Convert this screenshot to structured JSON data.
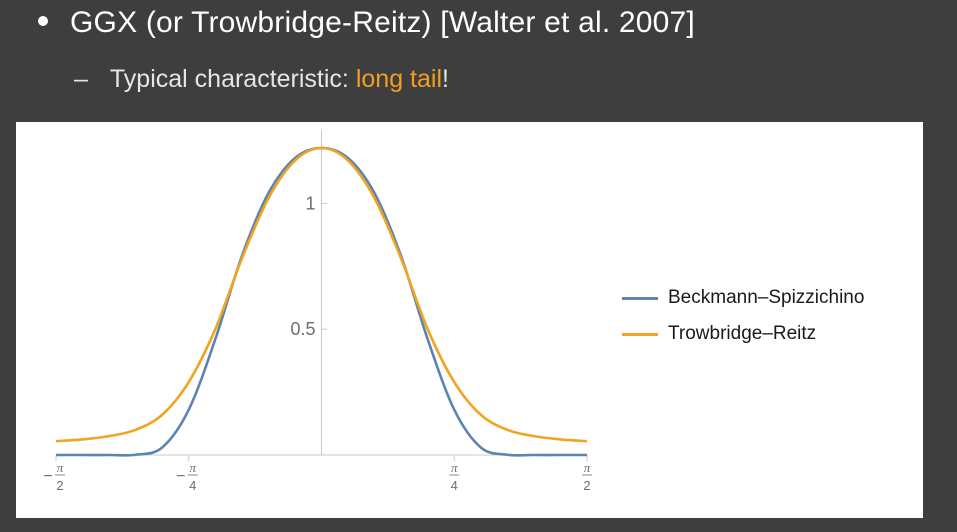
{
  "slide": {
    "title": "GGX (or Trowbridge-Reitz) [Walter et al. 2007]",
    "sub_prefix": "Typical characteristic: ",
    "sub_highlight": "long tail",
    "sub_suffix": "!",
    "highlight_color": "#f29e21"
  },
  "chart_data": {
    "type": "line",
    "title": "",
    "xlabel": "",
    "ylabel": "",
    "xlim": [
      -1.5708,
      1.5708
    ],
    "ylim": [
      0,
      1.22
    ],
    "grid": false,
    "legend_position": "right",
    "x_ticks": [
      {
        "value": -1.5708,
        "sign": "−",
        "num": "π",
        "den": "2"
      },
      {
        "value": -0.7854,
        "sign": "−",
        "num": "π",
        "den": "4"
      },
      {
        "value": 0.7854,
        "sign": "",
        "num": "π",
        "den": "4"
      },
      {
        "value": 1.5708,
        "sign": "",
        "num": "π",
        "den": "2"
      }
    ],
    "y_ticks": [
      {
        "value": 0.5,
        "label": "0.5"
      },
      {
        "value": 1,
        "label": "1"
      }
    ],
    "x": [
      -1.5708,
      -1.4137,
      -1.2566,
      -1.0996,
      -0.9425,
      -0.7854,
      -0.6283,
      -0.4712,
      -0.3142,
      -0.1571,
      0,
      0.1571,
      0.3142,
      0.4712,
      0.6283,
      0.7854,
      0.9425,
      1.0996,
      1.2566,
      1.4137,
      1.5708
    ],
    "series": [
      {
        "name": "Beckmann–Spizzichino",
        "color": "#5b84b1",
        "values": [
          0,
          0,
          0,
          0.001,
          0.03,
          0.18,
          0.46,
          0.79,
          1.04,
          1.18,
          1.22,
          1.18,
          1.04,
          0.79,
          0.46,
          0.18,
          0.03,
          0.001,
          0,
          0,
          0
        ]
      },
      {
        "name": "Trowbridge–Reitz",
        "color": "#f2a420",
        "values": [
          0.055,
          0.062,
          0.075,
          0.1,
          0.16,
          0.29,
          0.5,
          0.78,
          1.02,
          1.17,
          1.22,
          1.17,
          1.02,
          0.78,
          0.5,
          0.29,
          0.16,
          0.1,
          0.075,
          0.062,
          0.055
        ]
      }
    ]
  }
}
